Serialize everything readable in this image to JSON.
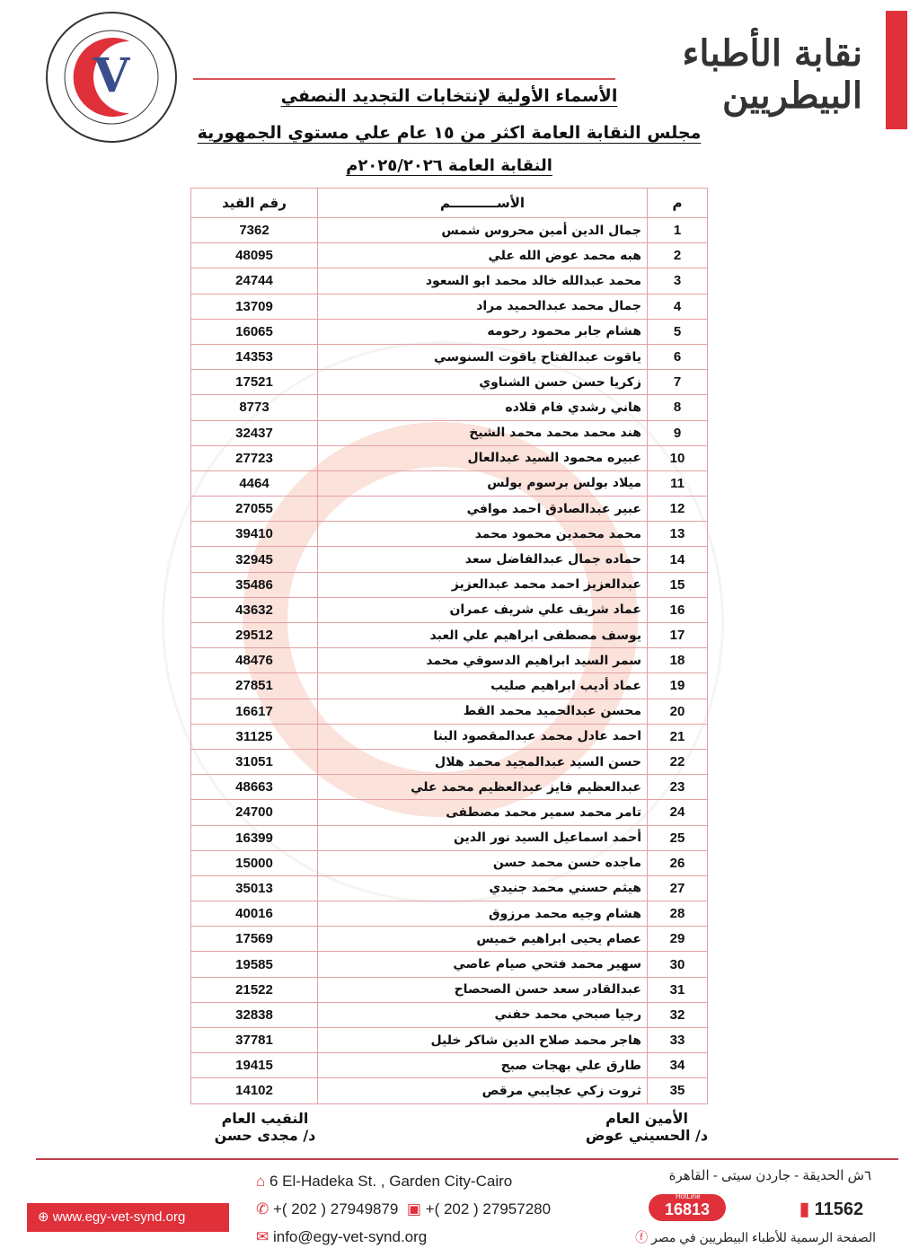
{
  "header": {
    "logo_text": "نقابة أطباء بيطريين مصر - EGYPTIAN VETERINARIANS SYNDICATE",
    "calligraphy": "نقابة الأطباء البيطريين",
    "title_line1": "الأسماء الأولية لإنتخابات التجديد النصفي",
    "title_line2": "مجلس النقابة العامة اكثر من ١٥ عام علي مستوي الجمهورية",
    "title_line3": "النقابة العامة ٢٠٢٥/٢٠٢٦م",
    "brand_color": "#e0303a"
  },
  "table": {
    "headers": {
      "num": "م",
      "name": "الأســــــــــم",
      "code": "رقم القيد"
    },
    "rows": [
      {
        "num": "1",
        "name": "جمال الدين أمين محروس شمس",
        "code": "7362"
      },
      {
        "num": "2",
        "name": "هبه محمد عوض الله علي",
        "code": "48095"
      },
      {
        "num": "3",
        "name": "محمد عبدالله خالد محمد ابو السعود",
        "code": "24744"
      },
      {
        "num": "4",
        "name": "جمال محمد عبدالحميد مراد",
        "code": "13709"
      },
      {
        "num": "5",
        "name": "هشام جابر محمود رحومه",
        "code": "16065"
      },
      {
        "num": "6",
        "name": "ياقوت عبدالفتاح ياقوت السنوسي",
        "code": "14353"
      },
      {
        "num": "7",
        "name": "زكريا حسن حسن الشناوي",
        "code": "17521"
      },
      {
        "num": "8",
        "name": "هاني رشدي فام قلاده",
        "code": "8773"
      },
      {
        "num": "9",
        "name": "هند محمد محمد محمد الشيخ",
        "code": "32437"
      },
      {
        "num": "10",
        "name": "عبيره محمود السيد عبدالعال",
        "code": "27723"
      },
      {
        "num": "11",
        "name": "ميلاد بولس برسوم بولس",
        "code": "4464"
      },
      {
        "num": "12",
        "name": "عبير عبدالصادق احمد موافي",
        "code": "27055"
      },
      {
        "num": "13",
        "name": "محمد محمدين محمود محمد",
        "code": "39410"
      },
      {
        "num": "14",
        "name": "حماده جمال عبدالفاضل سعد",
        "code": "32945"
      },
      {
        "num": "15",
        "name": "عبدالعزيز احمد محمد عبدالعزيز",
        "code": "35486"
      },
      {
        "num": "16",
        "name": "عماد شريف علي شريف عمران",
        "code": "43632"
      },
      {
        "num": "17",
        "name": "يوسف مصطفى ابراهيم علي العبد",
        "code": "29512"
      },
      {
        "num": "18",
        "name": "سمر السيد ابراهيم الدسوقي محمد",
        "code": "48476"
      },
      {
        "num": "19",
        "name": "عماد أديب ابراهيم صليب",
        "code": "27851"
      },
      {
        "num": "20",
        "name": "محسن عبدالحميد محمد القط",
        "code": "16617"
      },
      {
        "num": "21",
        "name": "احمد عادل محمد عبدالمقصود البنا",
        "code": "31125"
      },
      {
        "num": "22",
        "name": "حسن السيد عبدالمجيد محمد هلال",
        "code": "31051"
      },
      {
        "num": "23",
        "name": "عبدالعظيم فايز عبدالعظيم محمد علي",
        "code": "48663"
      },
      {
        "num": "24",
        "name": "تامر محمد سمير محمد مصطفى",
        "code": "24700"
      },
      {
        "num": "25",
        "name": "أحمد اسماعيل السيد نور الدين",
        "code": "16399"
      },
      {
        "num": "26",
        "name": "ماجده حسن محمد حسن",
        "code": "15000"
      },
      {
        "num": "27",
        "name": "هيثم حسني محمد جنيدي",
        "code": "35013"
      },
      {
        "num": "28",
        "name": "هشام وجيه محمد مرزوق",
        "code": "40016"
      },
      {
        "num": "29",
        "name": "عصام يحيى ابراهيم خميس",
        "code": "17569"
      },
      {
        "num": "30",
        "name": "سهير محمد فتحي صيام عاصي",
        "code": "19585"
      },
      {
        "num": "31",
        "name": "عبدالقادر سعد حسن الصحصاح",
        "code": "21522"
      },
      {
        "num": "32",
        "name": "رجيا صبحي محمد حفني",
        "code": "32838"
      },
      {
        "num": "33",
        "name": "هاجر محمد صلاح الدين شاكر خليل",
        "code": "37781"
      },
      {
        "num": "34",
        "name": "طارق علي بهجات صبح",
        "code": "19415"
      },
      {
        "num": "35",
        "name": "ثروت زكي عجايبي مرقص",
        "code": "14102"
      }
    ]
  },
  "signatures": {
    "secretary_title": "الأمين العام",
    "secretary_name": "د/ الحسيني عوض",
    "president_title": "النقيب العام",
    "president_name": "د/ مجدى حسن"
  },
  "footer": {
    "address_en": "6 El-Hadeka St. , Garden City-Cairo",
    "address_ar": "٦ش الحديقة - جاردن سيتى - القاهرة",
    "phone": "+( 202 ) 27949879",
    "fax": "+( 202 ) 27957280",
    "email": "info@egy-vet-synd.org",
    "website": "www.egy-vet-synd.org",
    "hotline_label": "HotLine",
    "hotline": "16813",
    "po_box": "11562",
    "facebook": "الصفحة الرسمية للأطباء البيطريين في مصر"
  }
}
